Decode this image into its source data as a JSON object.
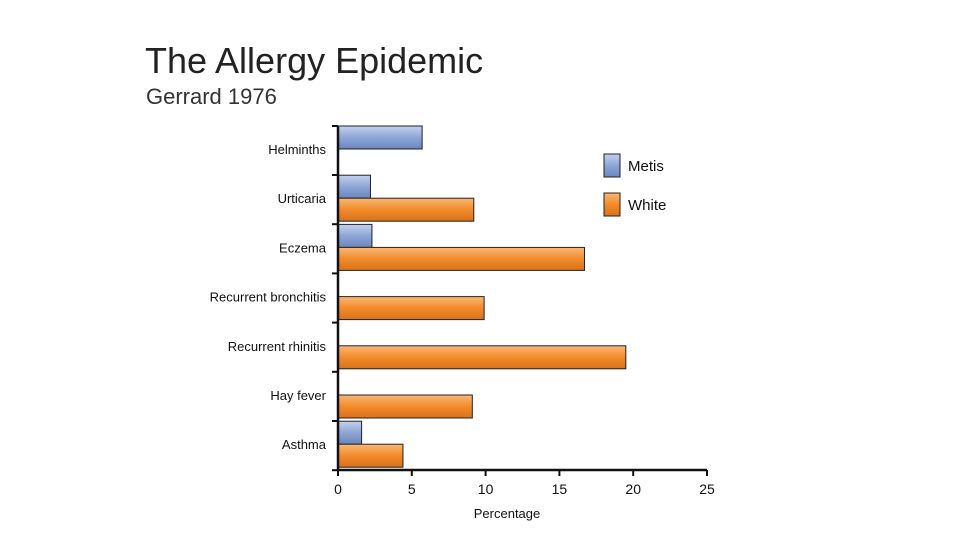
{
  "slide": {
    "title": "The Allergy Epidemic",
    "subtitle": "Gerrard 1976"
  },
  "colors": {
    "metis": "#8ea6d6",
    "white": "#f28b2a",
    "axis": "#111111"
  },
  "chart_data": {
    "type": "bar",
    "orientation": "horizontal",
    "categories": [
      "Helminths",
      "Urticaria",
      "Eczema",
      "Recurrent bronchitis",
      "Recurrent rhinitis",
      "Hay fever",
      "Asthma"
    ],
    "series": [
      {
        "name": "Metis",
        "values": [
          5.7,
          2.2,
          2.3,
          0,
          0,
          0,
          1.6
        ]
      },
      {
        "name": "White",
        "values": [
          0,
          9.2,
          16.7,
          9.9,
          19.5,
          9.1,
          4.4
        ]
      }
    ],
    "xlabel": "Percentage",
    "ylabel": "",
    "xlim": [
      0,
      25
    ],
    "xticks": [
      "0",
      "5",
      "10",
      "15",
      "20",
      "25"
    ],
    "grid": false,
    "legend_position": "top-right"
  }
}
